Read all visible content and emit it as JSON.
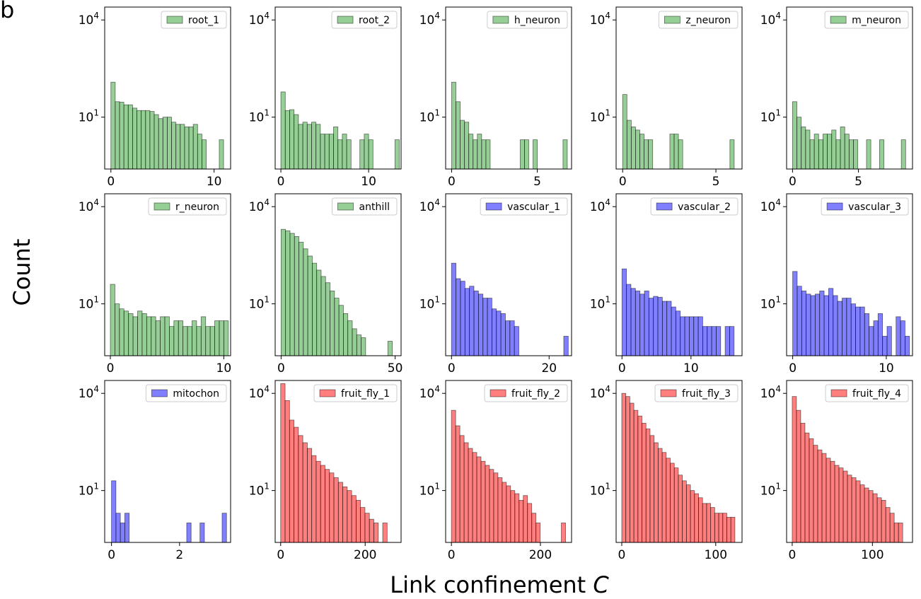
{
  "figure": {
    "panel_letter": "b",
    "xlabel_main": "Link confinement ",
    "xlabel_var": "C",
    "ylabel": "Count"
  },
  "chart_data": [
    {
      "type": "bar",
      "name": "root_1",
      "color": "#2ca02c",
      "xlim": [
        -0.6,
        11.6
      ],
      "xticks": [
        0,
        10
      ],
      "ylog": true,
      "ylim": [
        0.25,
        25000
      ],
      "yticks": [
        10,
        10000
      ],
      "x_start": 0,
      "bin_width": 0.42,
      "values": [
        120,
        30,
        29,
        24,
        24,
        19,
        16,
        16,
        16,
        15,
        12,
        9,
        10,
        10,
        7,
        6,
        6,
        5,
        5,
        6,
        3,
        2,
        0,
        0,
        0,
        2
      ]
    },
    {
      "type": "bar",
      "name": "root_2",
      "color": "#2ca02c",
      "xlim": [
        -0.65,
        13.7
      ],
      "xticks": [
        0,
        10
      ],
      "ylog": true,
      "ylim": [
        0.25,
        25000
      ],
      "yticks": [
        10,
        10000
      ],
      "x_start": 0,
      "bin_width": 0.5,
      "values": [
        60,
        16,
        17,
        12,
        6,
        7,
        6,
        7,
        6,
        3,
        3,
        3,
        5,
        2,
        3,
        2,
        0,
        0,
        2,
        3,
        2,
        0,
        0,
        0,
        0,
        0,
        2
      ]
    },
    {
      "type": "bar",
      "name": "h_neuron",
      "color": "#2ca02c",
      "xlim": [
        -0.35,
        7.0
      ],
      "xticks": [
        0,
        5
      ],
      "ylog": true,
      "ylim": [
        0.25,
        25000
      ],
      "yticks": [
        10,
        10000
      ],
      "x_start": 0,
      "bin_width": 0.25,
      "values": [
        120,
        30,
        8,
        7,
        3,
        2,
        3,
        2,
        2,
        0,
        0,
        0,
        0,
        0,
        0,
        0,
        2,
        2,
        0,
        2,
        0,
        0,
        0,
        0,
        0,
        0,
        2
      ]
    },
    {
      "type": "bar",
      "name": "z_neuron",
      "color": "#2ca02c",
      "xlim": [
        -0.35,
        6.4
      ],
      "xticks": [
        0,
        5
      ],
      "ylog": true,
      "ylim": [
        0.25,
        25000
      ],
      "yticks": [
        10,
        10000
      ],
      "x_start": 0,
      "bin_width": 0.23,
      "values": [
        50,
        8,
        5,
        4,
        3,
        2,
        2,
        0,
        0,
        0,
        0,
        3,
        3,
        2,
        0,
        0,
        0,
        0,
        0,
        0,
        0,
        0,
        0,
        0,
        0,
        2
      ]
    },
    {
      "type": "bar",
      "name": "m_neuron",
      "color": "#2ca02c",
      "xlim": [
        -0.45,
        9.1
      ],
      "xticks": [
        0,
        5
      ],
      "ylog": true,
      "ylim": [
        0.25,
        25000
      ],
      "yticks": [
        10,
        10000
      ],
      "x_start": 0,
      "bin_width": 0.33,
      "values": [
        30,
        10,
        5,
        4,
        2,
        3,
        2,
        3,
        3,
        4,
        2,
        5,
        3,
        2,
        2,
        0,
        0,
        2,
        0,
        0,
        2,
        0,
        0,
        0,
        0,
        2
      ]
    },
    {
      "type": "bar",
      "name": "r_neuron",
      "color": "#2ca02c",
      "xlim": [
        -0.5,
        10.6
      ],
      "xticks": [
        0,
        10
      ],
      "ylog": true,
      "ylim": [
        0.25,
        25000
      ],
      "yticks": [
        10,
        10000
      ],
      "x_start": 0,
      "bin_width": 0.4,
      "values": [
        40,
        10,
        7,
        6,
        5,
        4,
        6,
        5,
        4,
        4,
        3,
        4,
        4,
        2,
        3,
        3,
        2,
        2,
        3,
        2,
        4,
        2,
        2,
        3,
        3,
        3
      ]
    },
    {
      "type": "bar",
      "name": "anthill",
      "color": "#2ca02c",
      "xlim": [
        -2.6,
        52.6
      ],
      "xticks": [
        0,
        50
      ],
      "ylog": true,
      "ylim": [
        0.25,
        25000
      ],
      "yticks": [
        10,
        10000
      ],
      "x_start": 0,
      "bin_width": 1.95,
      "values": [
        2000,
        1800,
        1500,
        1200,
        800,
        500,
        300,
        180,
        110,
        70,
        45,
        25,
        15,
        9,
        5,
        3,
        1.7,
        1.1,
        0.9,
        0,
        0,
        0,
        0,
        0,
        0.7
      ]
    },
    {
      "type": "bar",
      "name": "vascular_1",
      "color": "#0000ff",
      "xlim": [
        -1.2,
        24.6
      ],
      "xticks": [
        0,
        20
      ],
      "ylog": true,
      "ylim": [
        0.25,
        25000
      ],
      "yticks": [
        10,
        10000
      ],
      "x_start": 0,
      "bin_width": 0.92,
      "values": [
        180,
        60,
        50,
        30,
        35,
        25,
        20,
        15,
        15,
        7,
        6,
        5,
        3,
        3,
        2,
        0,
        0,
        0,
        0,
        0,
        0,
        0,
        0,
        0,
        0,
        1
      ]
    },
    {
      "type": "bar",
      "name": "vascular_2",
      "color": "#0000ff",
      "xlim": [
        -0.85,
        17.4
      ],
      "xticks": [
        0,
        10
      ],
      "ylog": true,
      "ylim": [
        0.25,
        25000
      ],
      "yticks": [
        10,
        10000
      ],
      "x_start": 0,
      "bin_width": 0.65,
      "values": [
        120,
        40,
        30,
        25,
        20,
        25,
        15,
        17,
        16,
        12,
        12,
        8,
        6,
        4,
        4,
        4,
        4,
        4,
        2,
        2,
        2,
        2,
        0,
        2,
        2
      ]
    },
    {
      "type": "bar",
      "name": "vascular_3",
      "color": "#0000ff",
      "xlim": [
        -0.65,
        12.8
      ],
      "xticks": [
        0,
        10
      ],
      "ylog": true,
      "ylim": [
        0.25,
        25000
      ],
      "yticks": [
        10,
        10000
      ],
      "x_start": 0,
      "bin_width": 0.48,
      "values": [
        100,
        35,
        25,
        20,
        18,
        20,
        25,
        18,
        30,
        18,
        12,
        15,
        15,
        10,
        8,
        8,
        5,
        2,
        3,
        5,
        1,
        2,
        0,
        4,
        3,
        1
      ]
    },
    {
      "type": "bar",
      "name": "mitochon",
      "color": "#0000ff",
      "xlim": [
        -0.2,
        3.5
      ],
      "xticks": [
        0,
        2
      ],
      "ylog": true,
      "ylim": [
        0.25,
        25000
      ],
      "yticks": [
        10,
        10000
      ],
      "x_start": 0,
      "bin_width": 0.13,
      "values": [
        20,
        2,
        1,
        2,
        0,
        0,
        0,
        0,
        0,
        0,
        0,
        0,
        0,
        0,
        0,
        0,
        0,
        1,
        0,
        0,
        1,
        0,
        0,
        0,
        0,
        2
      ]
    },
    {
      "type": "bar",
      "name": "fruit_fly_1",
      "color": "#ff0000",
      "xlim": [
        -13,
        285
      ],
      "xticks": [
        0,
        200
      ],
      "ylog": true,
      "ylim": [
        0.25,
        25000
      ],
      "yticks": [
        10,
        10000
      ],
      "x_start": 0,
      "bin_width": 10.5,
      "values": [
        20000,
        6000,
        1500,
        900,
        500,
        300,
        200,
        120,
        80,
        60,
        45,
        35,
        25,
        18,
        13,
        10,
        7,
        5,
        3,
        2,
        1.3,
        1,
        0,
        1
      ]
    },
    {
      "type": "bar",
      "name": "fruit_fly_2",
      "color": "#ff0000",
      "xlim": [
        -13,
        270
      ],
      "xticks": [
        0,
        200
      ],
      "ylog": true,
      "ylim": [
        0.25,
        25000
      ],
      "yticks": [
        10,
        10000
      ],
      "x_start": 0,
      "bin_width": 9.5,
      "values": [
        3000,
        1000,
        500,
        300,
        200,
        150,
        110,
        80,
        60,
        45,
        35,
        25,
        18,
        14,
        10,
        8,
        5,
        7,
        4,
        2,
        1,
        0,
        0,
        0,
        0,
        0,
        1
      ]
    },
    {
      "type": "bar",
      "name": "fruit_fly_3",
      "color": "#ff0000",
      "xlim": [
        -6,
        128
      ],
      "xticks": [
        0,
        100
      ],
      "ylog": true,
      "ylim": [
        0.25,
        25000
      ],
      "yticks": [
        10,
        10000
      ],
      "x_start": 0,
      "bin_width": 4.3,
      "values": [
        10000,
        8000,
        5000,
        3000,
        2000,
        1200,
        800,
        500,
        300,
        200,
        150,
        100,
        70,
        50,
        30,
        20,
        15,
        10,
        8,
        6,
        4,
        4,
        3,
        2,
        2,
        2,
        1.5,
        1.5
      ]
    },
    {
      "type": "bar",
      "name": "fruit_fly_4",
      "color": "#ff0000",
      "xlim": [
        -7,
        150
      ],
      "xticks": [
        0,
        100
      ],
      "ylog": true,
      "ylim": [
        0.25,
        25000
      ],
      "yticks": [
        10,
        10000
      ],
      "x_start": 0,
      "bin_width": 5.3,
      "values": [
        8000,
        3000,
        1200,
        600,
        400,
        250,
        180,
        140,
        100,
        80,
        60,
        50,
        40,
        30,
        25,
        20,
        15,
        12,
        10,
        8,
        6,
        5,
        3,
        2,
        1,
        1
      ]
    }
  ]
}
